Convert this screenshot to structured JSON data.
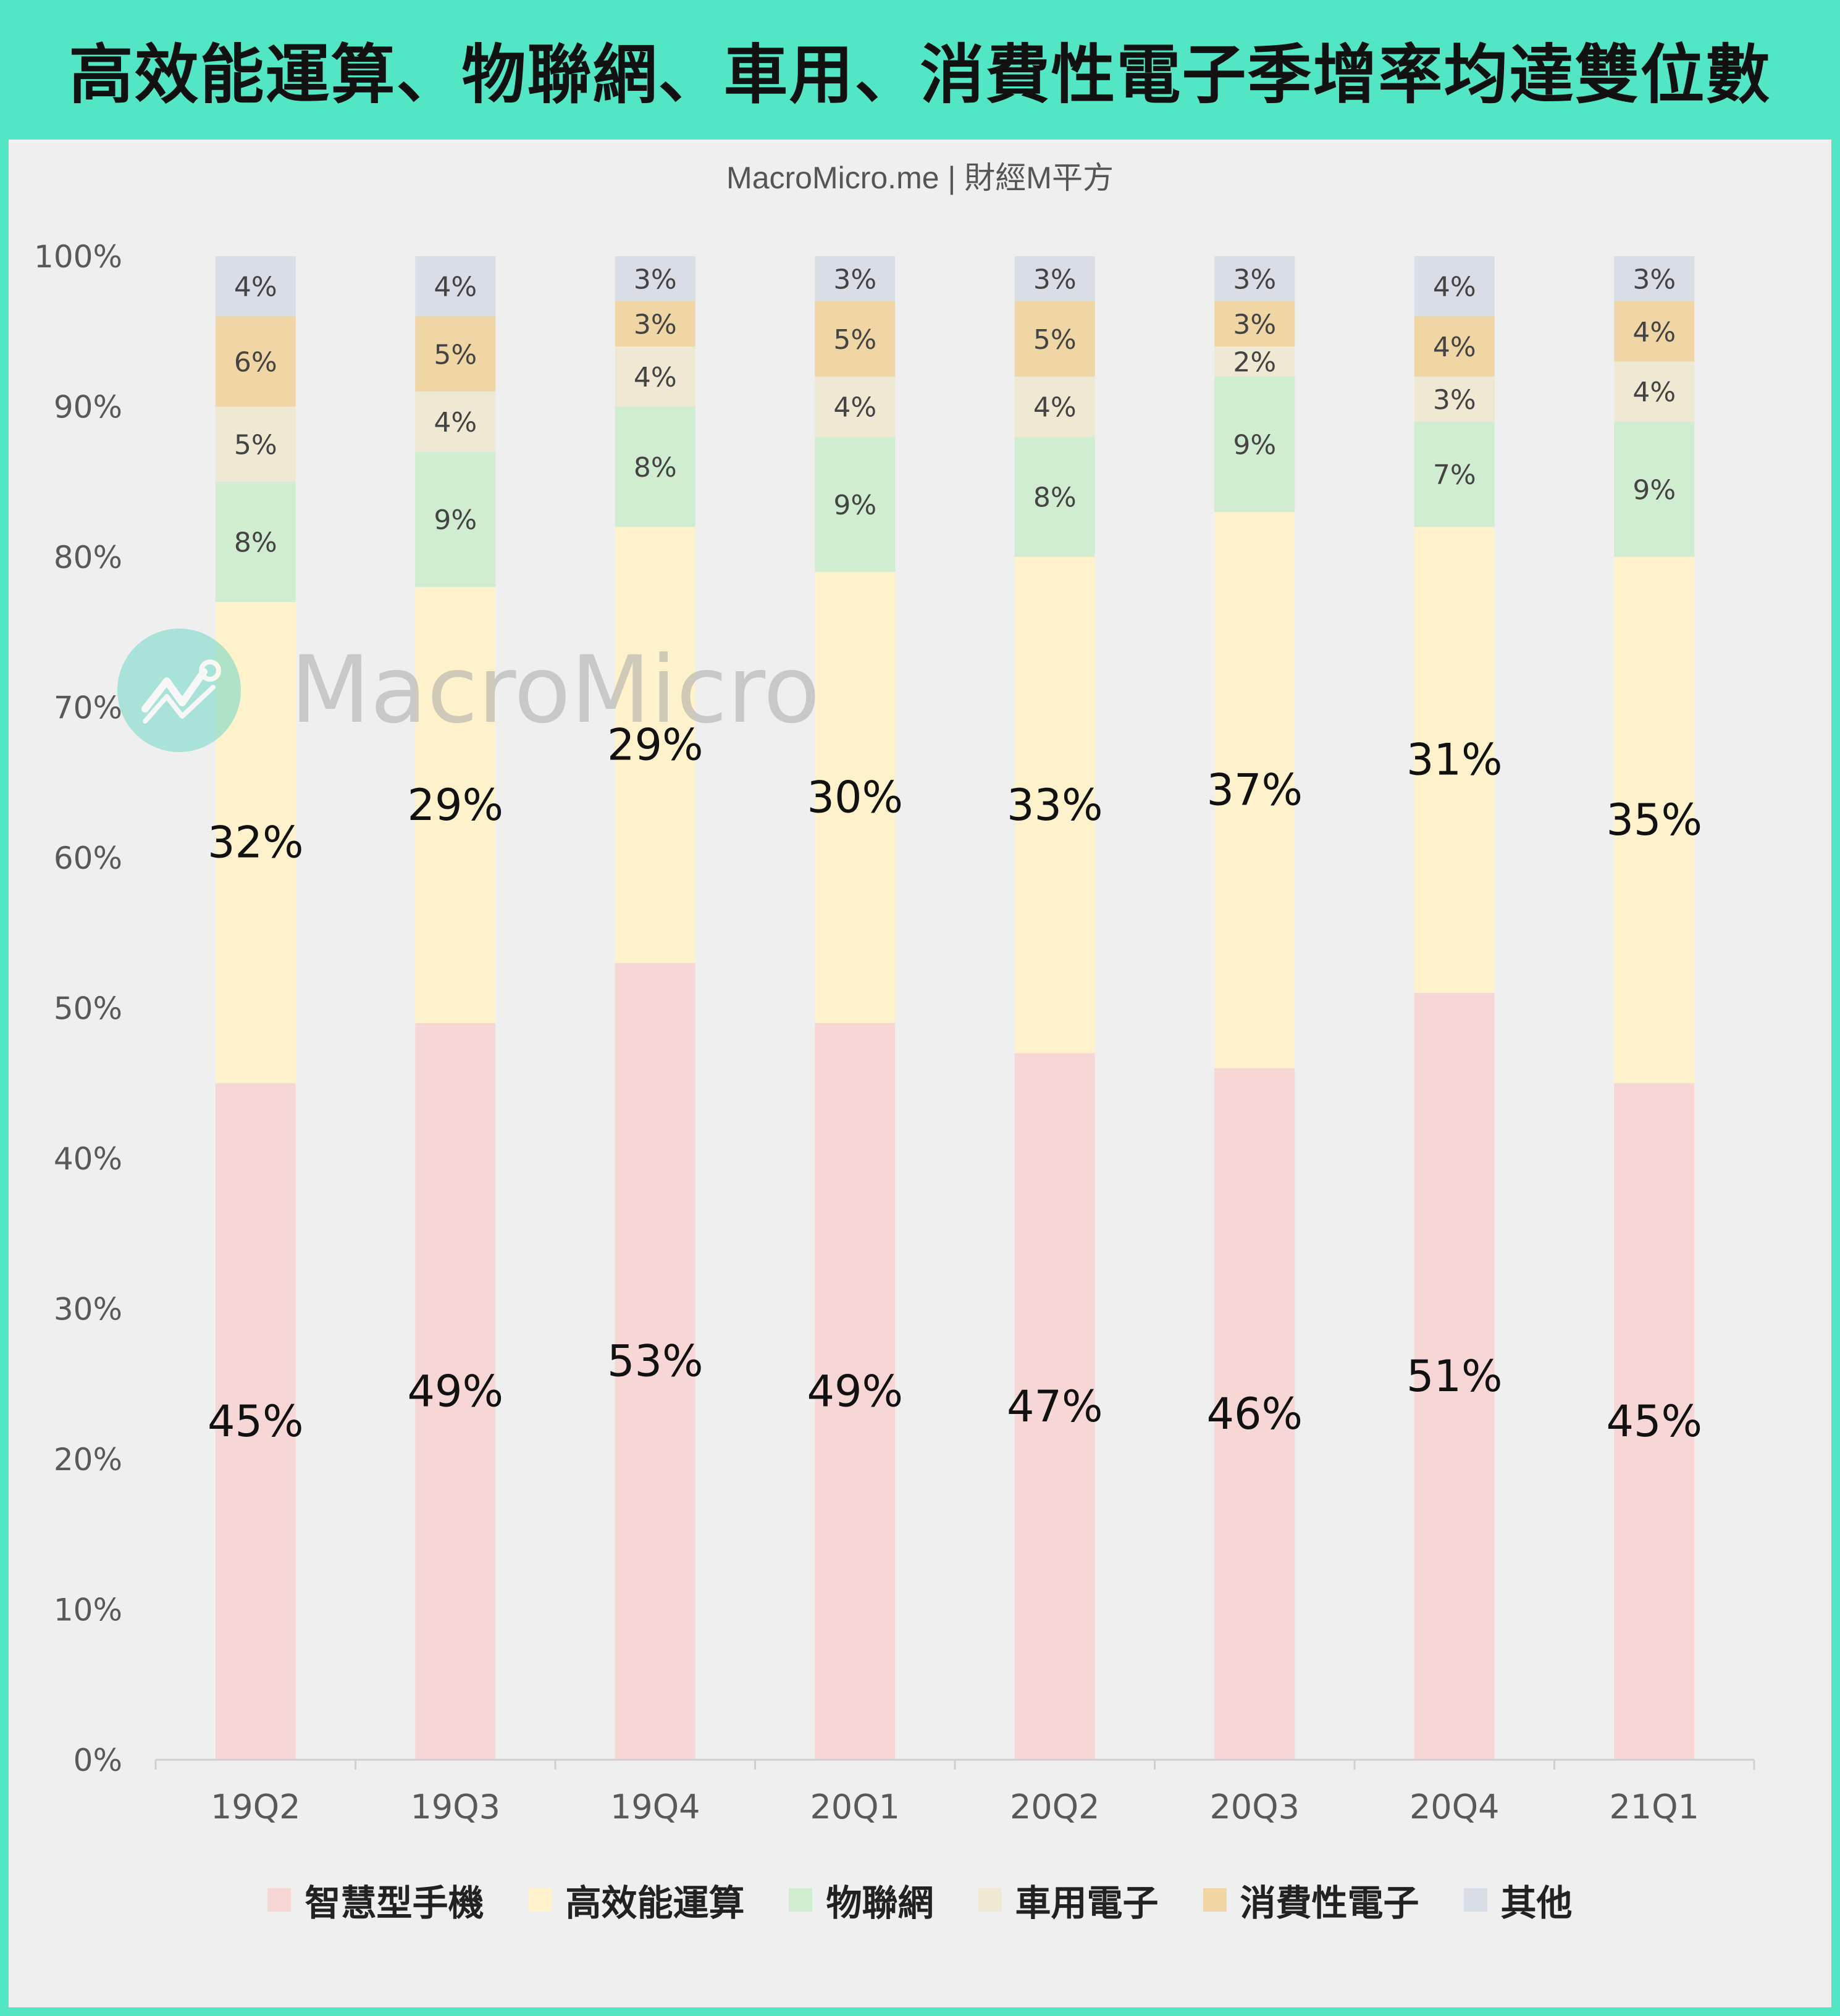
{
  "title": "高效能運算、物聯網、車用、消費性電子季增率均達雙位數",
  "source": "MacroMicro.me | 財經M平方",
  "watermark": "MacroMicro",
  "chart_data": {
    "type": "bar",
    "stacked": true,
    "categories": [
      "19Q2",
      "19Q3",
      "19Q4",
      "20Q1",
      "20Q2",
      "20Q3",
      "20Q4",
      "21Q1"
    ],
    "y_ticks": [
      "0%",
      "10%",
      "20%",
      "30%",
      "40%",
      "50%",
      "60%",
      "70%",
      "80%",
      "90%",
      "100%"
    ],
    "ylim": [
      0,
      100
    ],
    "grid": false,
    "legend_position": "bottom",
    "series": [
      {
        "name": "智慧型手機",
        "color": "#f6d7d5",
        "values": [
          45,
          49,
          53,
          49,
          47,
          46,
          51,
          45
        ],
        "labels": [
          "45%",
          "49%",
          "53%",
          "49%",
          "47%",
          "46%",
          "51%",
          "45%"
        ]
      },
      {
        "name": "高效能運算",
        "color": "#fef2cc",
        "values": [
          32,
          29,
          29,
          30,
          33,
          37,
          31,
          35
        ],
        "labels": [
          "32%",
          "29%",
          "29%",
          "30%",
          "33%",
          "37%",
          "31%",
          "35%"
        ]
      },
      {
        "name": "物聯網",
        "color": "#d0ecd1",
        "values": [
          8,
          9,
          8,
          9,
          8,
          9,
          7,
          9
        ],
        "labels": [
          "8%",
          "9%",
          "8%",
          "9%",
          "8%",
          "9%",
          "7%",
          "9%"
        ]
      },
      {
        "name": "車用電子",
        "color": "#efe8d2",
        "values": [
          5,
          4,
          4,
          4,
          4,
          2,
          3,
          4
        ],
        "labels": [
          "5%",
          "4%",
          "4%",
          "4%",
          "4%",
          "2%",
          "3%",
          "4%"
        ]
      },
      {
        "name": "消費性電子",
        "color": "#efd6a4",
        "values": [
          6,
          5,
          3,
          5,
          5,
          3,
          4,
          4
        ],
        "labels": [
          "6%",
          "5%",
          "3%",
          "5%",
          "5%",
          "3%",
          "4%",
          "4%"
        ]
      },
      {
        "name": "其他",
        "color": "#d8dde6",
        "values": [
          4,
          4,
          3,
          3,
          3,
          3,
          4,
          3
        ],
        "labels": [
          "4%",
          "4%",
          "3%",
          "3%",
          "3%",
          "3%",
          "4%",
          "3%"
        ]
      }
    ]
  }
}
